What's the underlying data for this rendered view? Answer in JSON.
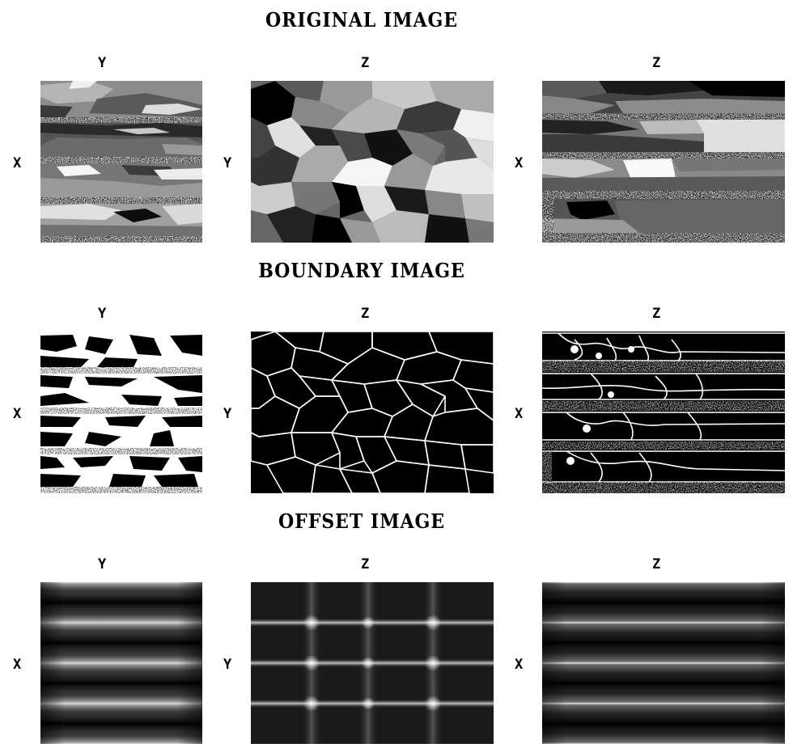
{
  "sections": [
    {
      "title": "ORIGINAL IMAGE",
      "panels": [
        {
          "top_label": "Y",
          "side_label": "X"
        },
        {
          "top_label": "Z",
          "side_label": "Y"
        },
        {
          "top_label": "Z",
          "side_label": "X"
        }
      ]
    },
    {
      "title": "BOUNDARY IMAGE",
      "panels": [
        {
          "top_label": "Y",
          "side_label": "X"
        },
        {
          "top_label": "Z",
          "side_label": "Y"
        },
        {
          "top_label": "Z",
          "side_label": "X"
        }
      ]
    },
    {
      "title": "OFFSET IMAGE",
      "panels": [
        {
          "top_label": "Y",
          "side_label": "X"
        },
        {
          "top_label": "Z",
          "side_label": "Y"
        },
        {
          "top_label": "Z",
          "side_label": "X"
        }
      ]
    }
  ]
}
